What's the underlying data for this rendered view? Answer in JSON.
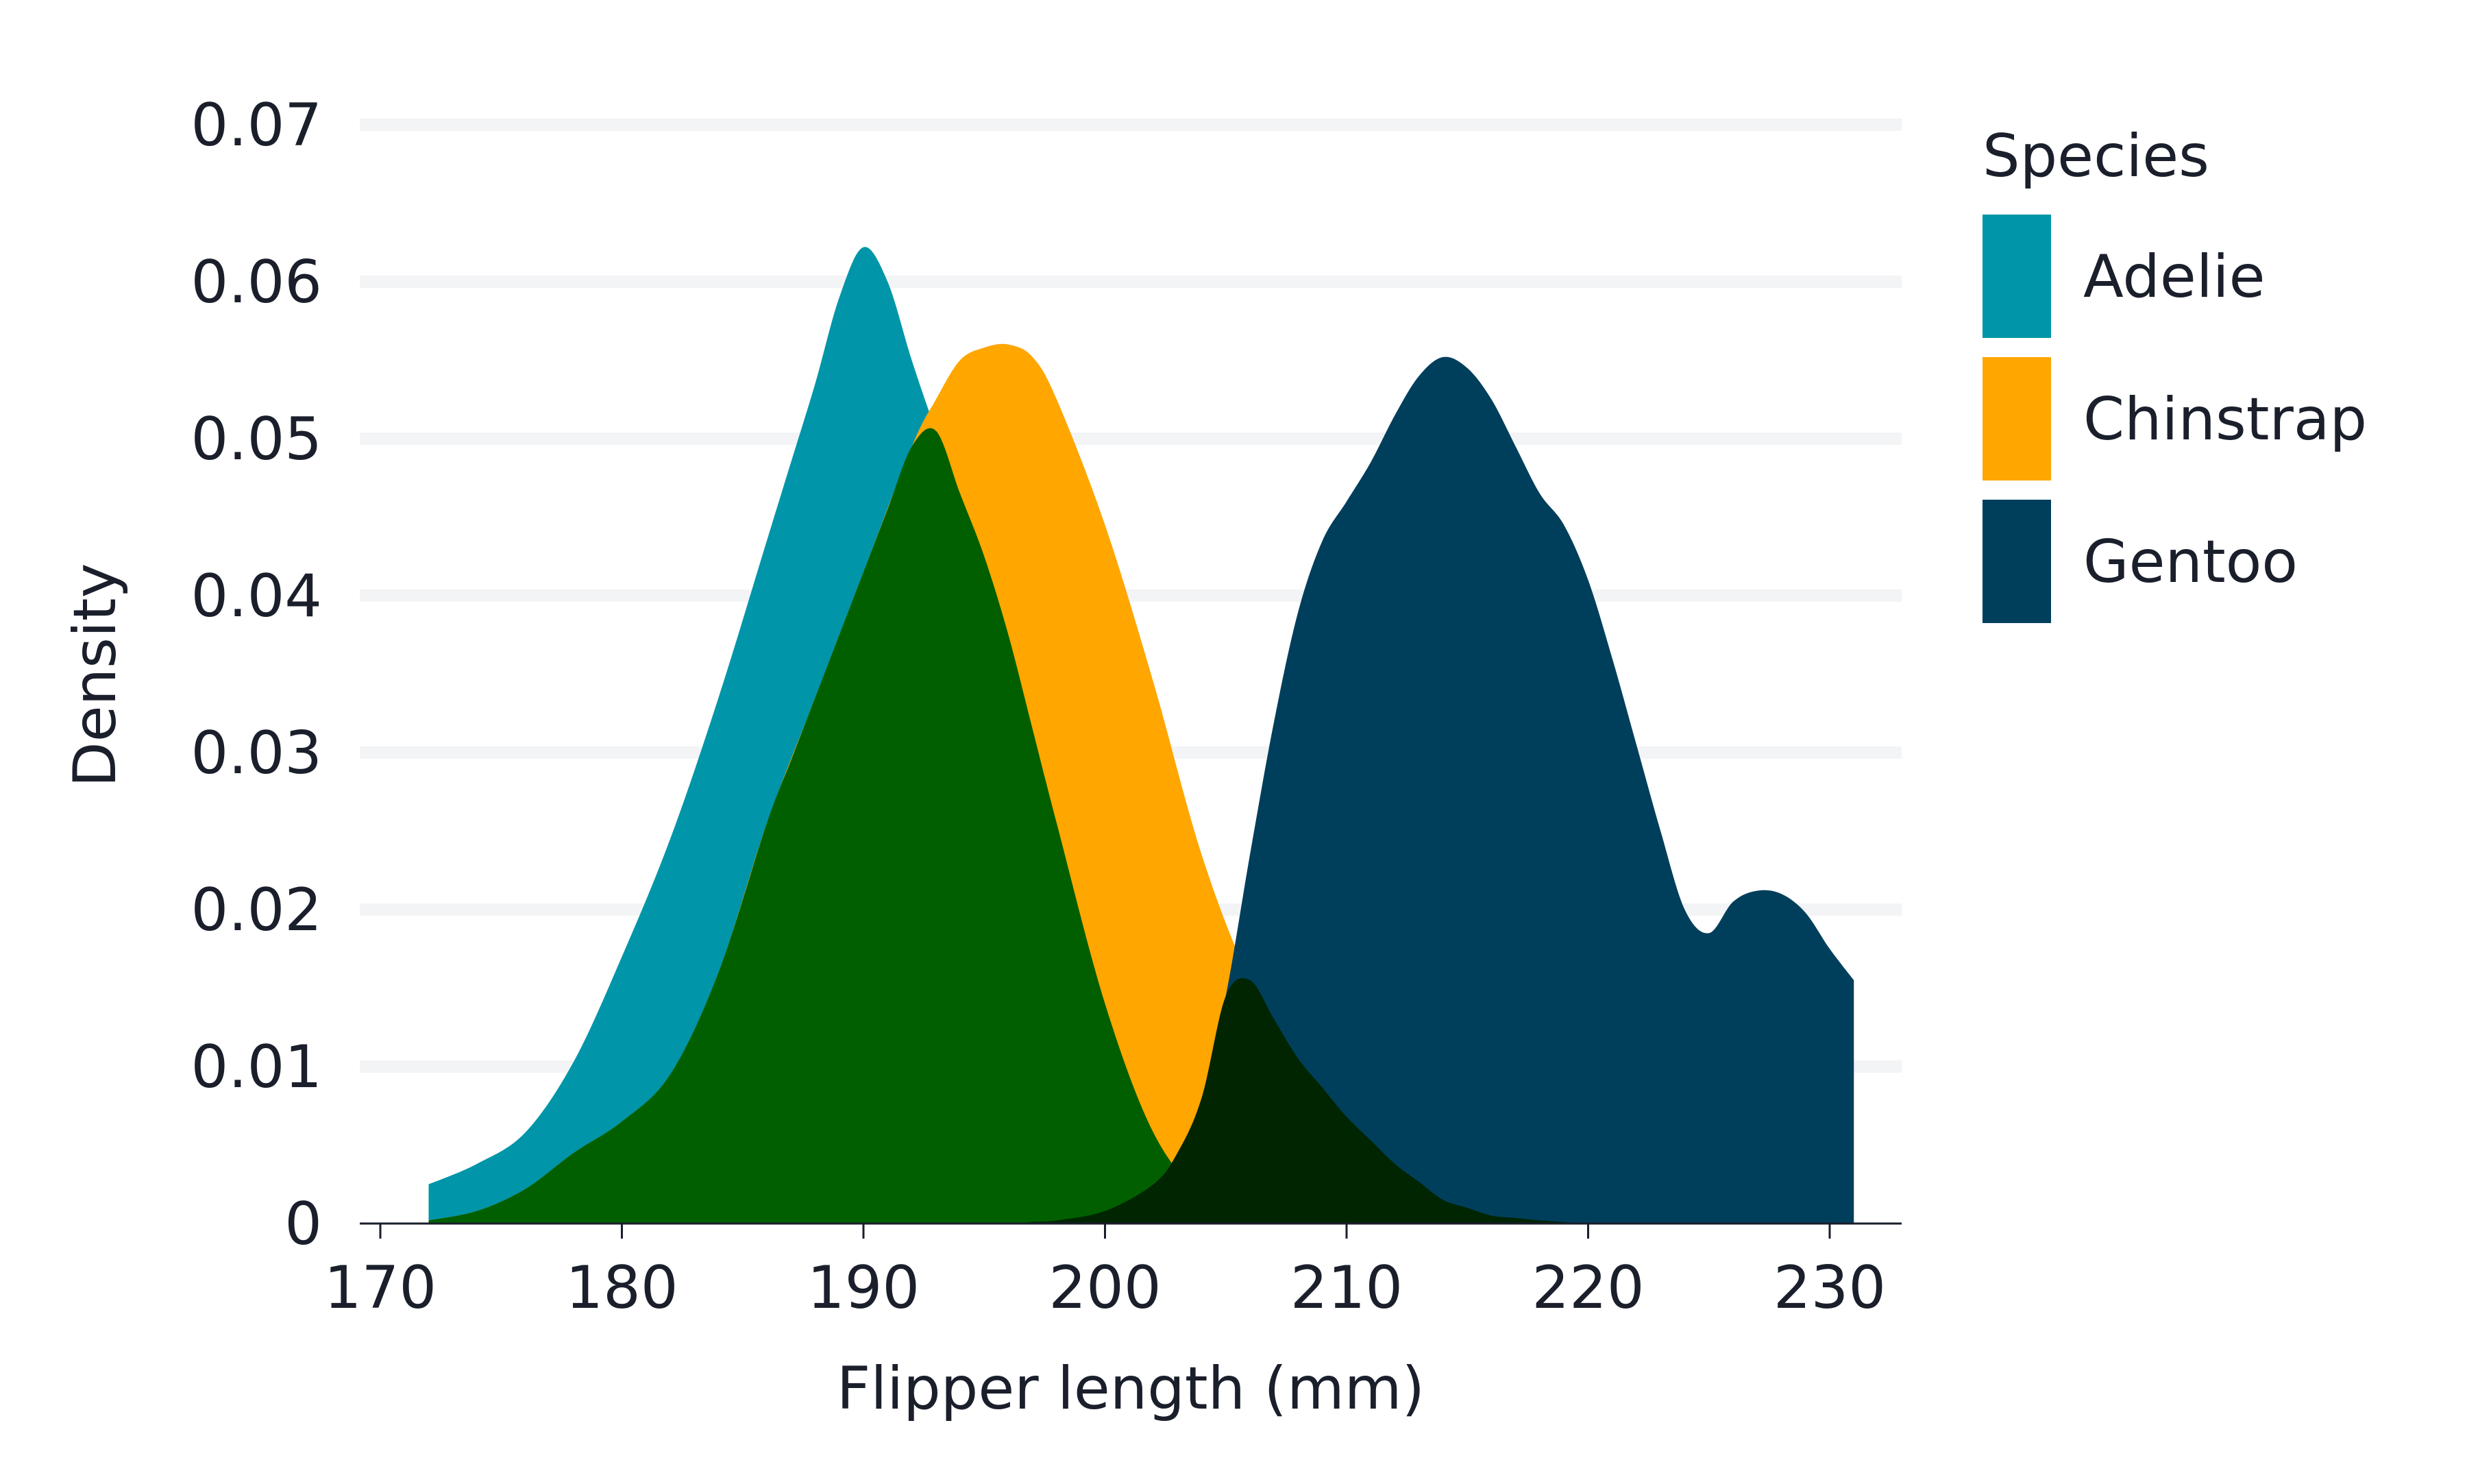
{
  "chart_data": {
    "type": "area",
    "title": "",
    "xlabel": "Flipper length (mm)",
    "ylabel": "Density",
    "xlim": [
      169,
      234
    ],
    "ylim": [
      0,
      0.07
    ],
    "xticks": [
      170,
      180,
      190,
      200,
      210,
      220,
      230
    ],
    "yticks": [
      0,
      0.01,
      0.02,
      0.03,
      0.04,
      0.05,
      0.06,
      0.07
    ],
    "ytick_labels": [
      "0",
      "0.01",
      "0.02",
      "0.03",
      "0.04",
      "0.05",
      "0.06",
      "0.07"
    ],
    "grid": "horizontal",
    "legend_title": "Species",
    "legend_position": "right",
    "series": [
      {
        "name": "Adelie",
        "color": "#0095a8",
        "x": [
          172,
          174,
          176,
          178,
          180,
          182,
          184,
          186,
          187,
          188,
          189,
          190,
          191,
          192,
          193,
          194,
          195,
          196,
          198,
          200,
          202,
          204,
          206,
          208,
          210
        ],
        "y": [
          0.0025,
          0.0038,
          0.0058,
          0.0103,
          0.017,
          0.0245,
          0.0335,
          0.0435,
          0.0485,
          0.0535,
          0.059,
          0.0622,
          0.06,
          0.055,
          0.0505,
          0.0465,
          0.0425,
          0.0375,
          0.0255,
          0.014,
          0.0058,
          0.0018,
          0.0005,
          0.0002,
          0.0001
        ]
      },
      {
        "name": "Chinstrap",
        "color": "#ffa600",
        "x": [
          172,
          174,
          176,
          178,
          180,
          182,
          184,
          186,
          188,
          190,
          192,
          193,
          194,
          195,
          196,
          197,
          198,
          200,
          202,
          204,
          206,
          208,
          210,
          212,
          214,
          216,
          218,
          220
        ],
        "y": [
          0.0002,
          0.0008,
          0.0022,
          0.0045,
          0.0065,
          0.0095,
          0.016,
          0.0255,
          0.0335,
          0.0415,
          0.0495,
          0.0525,
          0.055,
          0.0558,
          0.056,
          0.0552,
          0.0525,
          0.0445,
          0.0345,
          0.0235,
          0.0155,
          0.0105,
          0.0068,
          0.0038,
          0.0015,
          0.0005,
          0.0002,
          0
        ]
      },
      {
        "name": "Gentoo",
        "color": "#003f5c",
        "x": [
          196,
          198,
          200,
          202,
          203,
          204,
          205,
          206,
          207,
          208,
          209,
          210,
          211,
          212,
          213,
          214,
          215,
          216,
          217,
          218,
          219,
          220,
          221,
          222,
          223,
          224,
          225,
          226,
          227,
          228,
          229,
          230,
          231
        ],
        "y": [
          0,
          0.0002,
          0.0008,
          0.0025,
          0.0045,
          0.008,
          0.0145,
          0.0235,
          0.032,
          0.039,
          0.0435,
          0.046,
          0.0485,
          0.0515,
          0.054,
          0.0552,
          0.0545,
          0.0525,
          0.0495,
          0.0465,
          0.0445,
          0.041,
          0.036,
          0.0305,
          0.025,
          0.02,
          0.0185,
          0.0205,
          0.0212,
          0.021,
          0.0198,
          0.0175,
          0.0155
        ]
      }
    ]
  }
}
